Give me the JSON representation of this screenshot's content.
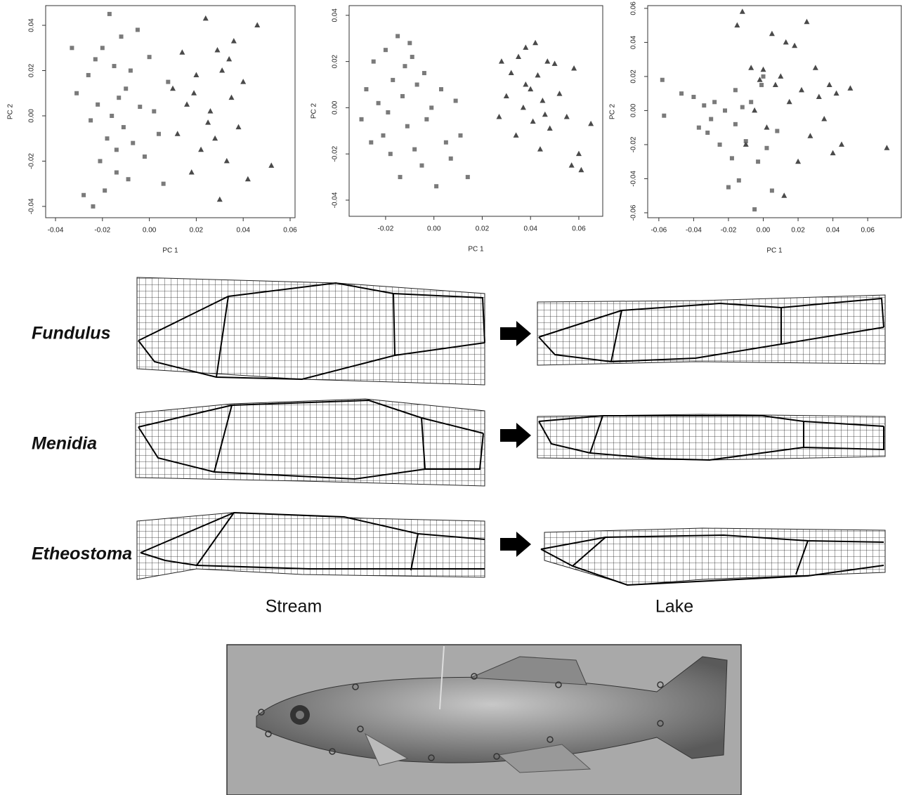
{
  "chart_data": [
    {
      "type": "scatter",
      "xlabel": "PC 1",
      "ylabel": "PC 2",
      "xlim": [
        -0.0442,
        0.0621
      ],
      "ylim": [
        -0.045,
        0.0487
      ],
      "xticks": [
        -0.04,
        -0.02,
        {
          "value": 0,
          "label": "0.00"
        },
        0.02,
        0.04,
        0.06
      ],
      "yticks": [
        -0.04,
        -0.02,
        {
          "value": 0,
          "label": "0.00"
        },
        0.02,
        0.04
      ],
      "series": [
        {
          "color": "#7a7a7a",
          "marker": "square",
          "x": [
            -0.033,
            -0.031,
            -0.028,
            -0.026,
            -0.024,
            -0.022,
            -0.021,
            -0.02,
            -0.018,
            -0.017,
            -0.016,
            -0.015,
            -0.014,
            -0.013,
            -0.012,
            -0.011,
            -0.01,
            -0.009,
            -0.008,
            -0.007,
            -0.005,
            -0.004,
            -0.002,
            0.0,
            0.002,
            0.004,
            0.006,
            0.008,
            -0.019,
            -0.025,
            -0.023,
            -0.014
          ],
          "values": [
            0.03,
            0.01,
            -0.035,
            0.018,
            -0.04,
            0.005,
            -0.02,
            0.03,
            -0.01,
            0.045,
            0.0,
            0.022,
            -0.015,
            0.008,
            0.035,
            -0.005,
            0.012,
            -0.028,
            0.02,
            -0.012,
            0.038,
            0.004,
            -0.018,
            0.026,
            0.002,
            -0.008,
            -0.03,
            0.015,
            -0.033,
            -0.002,
            0.025,
            -0.025
          ]
        },
        {
          "color": "#4a4a4a",
          "marker": "triangle",
          "x": [
            0.01,
            0.012,
            0.014,
            0.016,
            0.018,
            0.02,
            0.022,
            0.024,
            0.026,
            0.028,
            0.029,
            0.03,
            0.031,
            0.033,
            0.035,
            0.036,
            0.038,
            0.04,
            0.042,
            0.046,
            0.052,
            0.025,
            0.019,
            0.034
          ],
          "values": [
            0.012,
            -0.008,
            0.028,
            0.005,
            -0.025,
            0.018,
            -0.015,
            0.043,
            0.002,
            -0.01,
            0.029,
            -0.037,
            0.02,
            -0.02,
            0.008,
            0.033,
            -0.005,
            0.015,
            -0.028,
            0.04,
            -0.022,
            -0.003,
            0.01,
            0.025
          ]
        }
      ]
    },
    {
      "type": "scatter",
      "xlabel": "PC 1",
      "ylabel": "PC 2",
      "xlim": [
        -0.0351,
        0.0699
      ],
      "ylim": [
        -0.047,
        0.0442
      ],
      "xticks": [
        -0.02,
        {
          "value": 0,
          "label": "0.00"
        },
        0.02,
        0.04,
        0.06
      ],
      "yticks": [
        -0.04,
        -0.02,
        {
          "value": 0,
          "label": "0.00"
        },
        0.02,
        0.04
      ],
      "series": [
        {
          "color": "#7a7a7a",
          "marker": "square",
          "x": [
            -0.03,
            -0.028,
            -0.026,
            -0.025,
            -0.023,
            -0.021,
            -0.02,
            -0.018,
            -0.017,
            -0.015,
            -0.014,
            -0.013,
            -0.012,
            -0.011,
            -0.01,
            -0.008,
            -0.007,
            -0.005,
            -0.004,
            -0.003,
            -0.001,
            0.001,
            0.003,
            0.005,
            0.007,
            0.009,
            0.011,
            0.014,
            -0.019,
            -0.009
          ],
          "values": [
            -0.005,
            0.008,
            -0.015,
            0.02,
            0.002,
            -0.012,
            0.025,
            -0.02,
            0.012,
            0.031,
            -0.03,
            0.005,
            0.018,
            -0.008,
            0.028,
            -0.018,
            0.01,
            -0.025,
            0.015,
            -0.005,
            0.0,
            -0.034,
            0.008,
            -0.015,
            -0.022,
            0.003,
            -0.012,
            -0.03,
            -0.002,
            0.022
          ]
        },
        {
          "color": "#4a4a4a",
          "marker": "triangle",
          "x": [
            0.027,
            0.028,
            0.03,
            0.032,
            0.034,
            0.035,
            0.037,
            0.038,
            0.04,
            0.041,
            0.042,
            0.043,
            0.044,
            0.045,
            0.047,
            0.048,
            0.05,
            0.052,
            0.055,
            0.057,
            0.058,
            0.06,
            0.061,
            0.065,
            0.038,
            0.046
          ],
          "values": [
            -0.004,
            0.02,
            0.005,
            0.015,
            -0.012,
            0.022,
            0.0,
            0.026,
            0.008,
            -0.006,
            0.028,
            0.014,
            -0.018,
            0.003,
            0.02,
            -0.009,
            0.019,
            0.006,
            -0.004,
            -0.025,
            0.017,
            -0.02,
            -0.027,
            -0.007,
            0.01,
            -0.003
          ]
        }
      ]
    },
    {
      "type": "scatter",
      "xlabel": "PC 1",
      "ylabel": "PC 2",
      "xlim": [
        -0.0664,
        0.0793
      ],
      "ylim": [
        -0.0629,
        0.0616
      ],
      "xticks": [
        -0.06,
        -0.04,
        -0.02,
        {
          "value": 0,
          "label": "0.00"
        },
        0.02,
        0.04,
        0.06
      ],
      "yticks": [
        -0.06,
        -0.04,
        -0.02,
        {
          "value": 0,
          "label": "0.00"
        },
        0.02,
        0.04,
        0.06
      ],
      "series": [
        {
          "color": "#7a7a7a",
          "marker": "square",
          "x": [
            -0.058,
            -0.057,
            -0.047,
            -0.04,
            -0.037,
            -0.034,
            -0.032,
            -0.03,
            -0.028,
            -0.025,
            -0.022,
            -0.02,
            -0.018,
            -0.016,
            -0.014,
            -0.012,
            -0.01,
            -0.007,
            -0.005,
            -0.003,
            -0.001,
            0.002,
            0.005,
            0.008,
            -0.016,
            0.0
          ],
          "values": [
            0.018,
            -0.003,
            0.01,
            0.008,
            -0.01,
            0.003,
            -0.013,
            -0.005,
            0.005,
            -0.02,
            0.0,
            -0.045,
            -0.028,
            0.012,
            -0.041,
            0.002,
            -0.018,
            0.005,
            -0.058,
            -0.03,
            0.015,
            -0.022,
            -0.047,
            -0.012,
            -0.008,
            0.02
          ]
        },
        {
          "color": "#4a4a4a",
          "marker": "triangle",
          "x": [
            -0.015,
            -0.012,
            -0.01,
            -0.007,
            -0.005,
            -0.002,
            0.0,
            0.002,
            0.005,
            0.007,
            0.01,
            0.012,
            0.015,
            0.018,
            0.02,
            0.022,
            0.025,
            0.027,
            0.03,
            0.032,
            0.035,
            0.038,
            0.04,
            0.042,
            0.045,
            0.05,
            0.071,
            0.013
          ],
          "values": [
            0.05,
            0.058,
            -0.02,
            0.025,
            0.0,
            0.018,
            0.024,
            -0.01,
            0.045,
            0.015,
            0.02,
            -0.05,
            0.005,
            0.038,
            -0.03,
            0.012,
            0.052,
            -0.015,
            0.025,
            0.008,
            -0.005,
            0.015,
            -0.025,
            0.01,
            -0.02,
            0.013,
            -0.022,
            0.04
          ]
        }
      ]
    }
  ],
  "morphology": {
    "species": [
      "Fundulus",
      "Menidia",
      "Etheostoma"
    ],
    "habitats": [
      "Stream",
      "Lake"
    ]
  }
}
